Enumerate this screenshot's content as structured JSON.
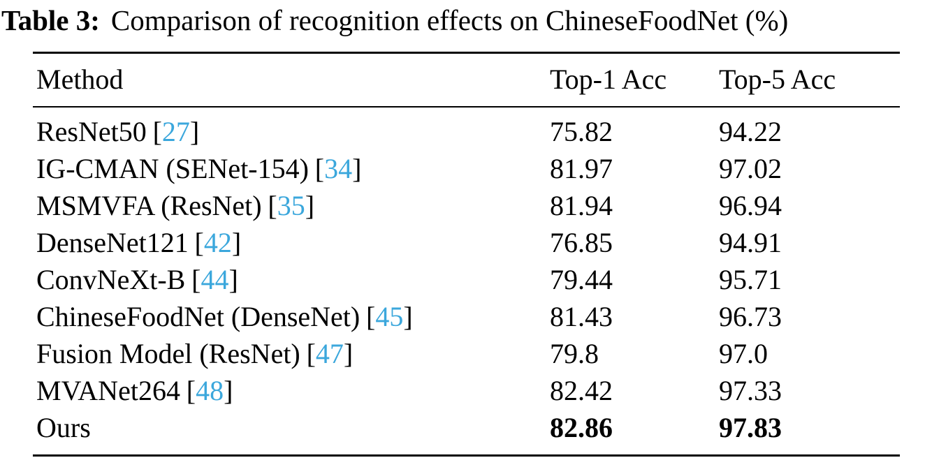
{
  "title": {
    "label": "Table 3:",
    "text": "Comparison of recognition effects on ChineseFoodNet (%)"
  },
  "colors": {
    "citation_link": "#3BA7DC",
    "text": "#000000",
    "background": "#FFFFFF"
  },
  "table": {
    "cite_open": "[",
    "cite_close": "]",
    "headers": [
      "Method",
      "Top-1 Acc",
      "Top-5 Acc"
    ],
    "rows": [
      {
        "method": "ResNet50",
        "cite": "27",
        "top1": "75.82",
        "top5": "94.22"
      },
      {
        "method": "IG-CMAN (SENet-154)",
        "cite": "34",
        "top1": "81.97",
        "top5": "97.02"
      },
      {
        "method": "MSMVFA (ResNet)",
        "cite": "35",
        "top1": "81.94",
        "top5": "96.94"
      },
      {
        "method": "DenseNet121",
        "cite": "42",
        "top1": "76.85",
        "top5": "94.91"
      },
      {
        "method": "ConvNeXt-B",
        "cite": "44",
        "top1": "79.44",
        "top5": "95.71"
      },
      {
        "method": "ChineseFoodNet (DenseNet)",
        "cite": "45",
        "top1": "81.43",
        "top5": "96.73"
      },
      {
        "method": "Fusion Model (ResNet)",
        "cite": "47",
        "top1": "79.8",
        "top5": "97.0"
      },
      {
        "method": "MVANet264",
        "cite": "48",
        "top1": "82.42",
        "top5": "97.33"
      },
      {
        "method": "Ours",
        "cite": "",
        "top1": "82.86",
        "top5": "97.83"
      }
    ]
  }
}
